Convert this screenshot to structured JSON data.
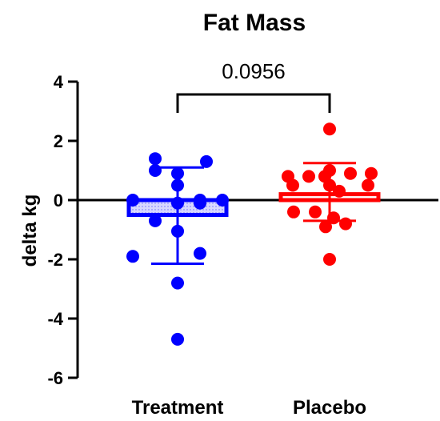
{
  "chart_data": {
    "type": "scatter",
    "title": "Fat Mass",
    "xlabel": "",
    "ylabel": "delta kg",
    "ylim": [
      -6,
      4
    ],
    "yticks": [
      "4",
      "2",
      "0",
      "-2",
      "-4",
      "-6"
    ],
    "categories": [
      "Treatment",
      "Placebo"
    ],
    "series": [
      {
        "category": "Treatment",
        "color": "#0000ff",
        "bar_mean": -0.5,
        "error_upper": 1.1,
        "error_lower": -2.15,
        "points": [
          1.4,
          1.3,
          0.9,
          1.0,
          0.5,
          0.0,
          0.0,
          0.0,
          -0.1,
          -0.1,
          -0.7,
          -1.05,
          -1.8,
          -1.9,
          -2.8,
          -4.7
        ]
      },
      {
        "category": "Placebo",
        "color": "#ff0000",
        "bar_mean": 0.2,
        "error_upper": 1.25,
        "error_lower": -0.7,
        "points": [
          2.4,
          1.0,
          0.9,
          0.8,
          0.8,
          0.9,
          0.8,
          0.5,
          0.5,
          0.5,
          0.3,
          -0.4,
          -0.4,
          -0.6,
          -0.9,
          -0.8,
          -2.0
        ]
      }
    ],
    "annotation": {
      "text": "0.0956",
      "between": [
        "Treatment",
        "Placebo"
      ]
    },
    "grid": false,
    "zero_line": true
  }
}
